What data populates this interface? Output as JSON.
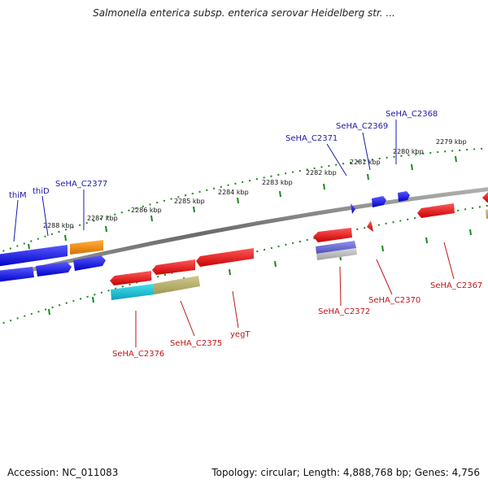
{
  "header": {
    "title": "Salmonella enterica subsp. enterica serovar Heidelberg str. ..."
  },
  "footer": {
    "accession": "Accession: NC_011083",
    "summary": "Topology: circular; Length: 4,888,768 bp; Genes: 4,756"
  },
  "colors": {
    "forward": "#1010e0",
    "reverse": "#e01010",
    "orange": "#f08a10",
    "cyan": "#20c0d0",
    "khaki": "#b8b070",
    "purple": "#7070d0",
    "grey": "#b0b0b0",
    "backbone": "#808080",
    "tick": "#1a8a1a"
  },
  "kbp_ticks": [
    "2279 kbp",
    "2280 kbp",
    "2281 kbp",
    "2282 kbp",
    "2283 kbp",
    "2284 kbp",
    "2285 kbp",
    "2286 kbp",
    "2287 kbp",
    "2288 kbp"
  ],
  "top_labels": [
    "SeHA_C2368",
    "SeHA_C2369",
    "SeHA_C2371",
    "SeHA_C2377",
    "thiD",
    "thiM"
  ],
  "bottom_labels": [
    "SeHA_C2367",
    "SeHA_C2370",
    "SeHA_C2372",
    "yegT",
    "SeHA_C2375",
    "SeHA_C2376"
  ]
}
